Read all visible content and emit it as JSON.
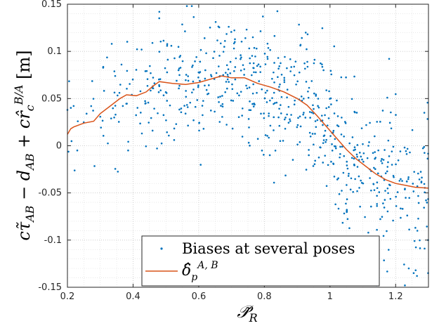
{
  "chart_data": {
    "type": "scatter",
    "title": "",
    "xlabel": "P̃_R",
    "ylabel": "cτ̃_AB − d_AB + cr̂_c^{B/A} [m]",
    "xlim": [
      0.2,
      1.3
    ],
    "ylim": [
      -0.15,
      0.15
    ],
    "x_ticks": [
      0.2,
      0.4,
      0.6,
      0.8,
      1.0,
      1.2
    ],
    "x_tick_labels": [
      "0.2",
      "0.4",
      "0.6",
      "0.8",
      "1",
      "1.2"
    ],
    "y_ticks": [
      -0.15,
      -0.1,
      -0.05,
      0,
      0.05,
      0.1,
      0.15
    ],
    "y_tick_labels": [
      "-0.15",
      "-0.1",
      "-0.05",
      "0",
      "0.05",
      "0.1",
      "0.15"
    ],
    "grid": true,
    "minor_grid": true,
    "legend_position": "bottom-center",
    "colors": {
      "scatter": "#0072bd",
      "line": "#d95319"
    },
    "series": [
      {
        "name": "Biases at several poses",
        "kind": "scatter",
        "generator": {
          "counts": [
            14,
            34,
            48,
            60,
            70,
            74,
            80,
            90,
            95,
            150
          ],
          "bin_edges": [
            0.2,
            0.3,
            0.4,
            0.5,
            0.6,
            0.7,
            0.8,
            0.9,
            1.0,
            1.1,
            1.3
          ],
          "spread_sd": [
            0.025,
            0.028,
            0.03,
            0.03,
            0.03,
            0.03,
            0.033,
            0.035,
            0.038,
            0.04
          ]
        },
        "outliers": [
          {
            "x": 0.48,
            "y": 0.142
          },
          {
            "x": 0.765,
            "y": 0.115
          },
          {
            "x": 0.71,
            "y": 0.11
          },
          {
            "x": 0.335,
            "y": 0.108
          },
          {
            "x": 0.385,
            "y": -0.005
          },
          {
            "x": 1.24,
            "y": -0.13
          },
          {
            "x": 1.255,
            "y": -0.135
          },
          {
            "x": 1.265,
            "y": -0.138
          },
          {
            "x": 1.3,
            "y": -0.135
          },
          {
            "x": 1.3,
            "y": -0.1
          },
          {
            "x": 0.2,
            "y": 0.038
          },
          {
            "x": 0.23,
            "y": -0.005
          }
        ]
      },
      {
        "name": "δ̂_p^{A,B}",
        "kind": "line",
        "x": [
          0.2,
          0.21,
          0.22,
          0.25,
          0.28,
          0.3,
          0.33,
          0.36,
          0.38,
          0.41,
          0.44,
          0.46,
          0.48,
          0.52,
          0.56,
          0.6,
          0.64,
          0.67,
          0.7,
          0.74,
          0.78,
          0.82,
          0.86,
          0.9,
          0.93,
          0.96,
          0.99,
          1.02,
          1.05,
          1.08,
          1.11,
          1.14,
          1.17,
          1.2,
          1.23,
          1.26,
          1.3
        ],
        "y": [
          0.012,
          0.018,
          0.02,
          0.024,
          0.026,
          0.034,
          0.042,
          0.05,
          0.054,
          0.053,
          0.057,
          0.063,
          0.068,
          0.066,
          0.065,
          0.067,
          0.071,
          0.074,
          0.072,
          0.072,
          0.066,
          0.062,
          0.057,
          0.05,
          0.043,
          0.032,
          0.02,
          0.008,
          -0.004,
          -0.014,
          -0.022,
          -0.03,
          -0.036,
          -0.04,
          -0.042,
          -0.044,
          -0.045
        ]
      }
    ]
  }
}
